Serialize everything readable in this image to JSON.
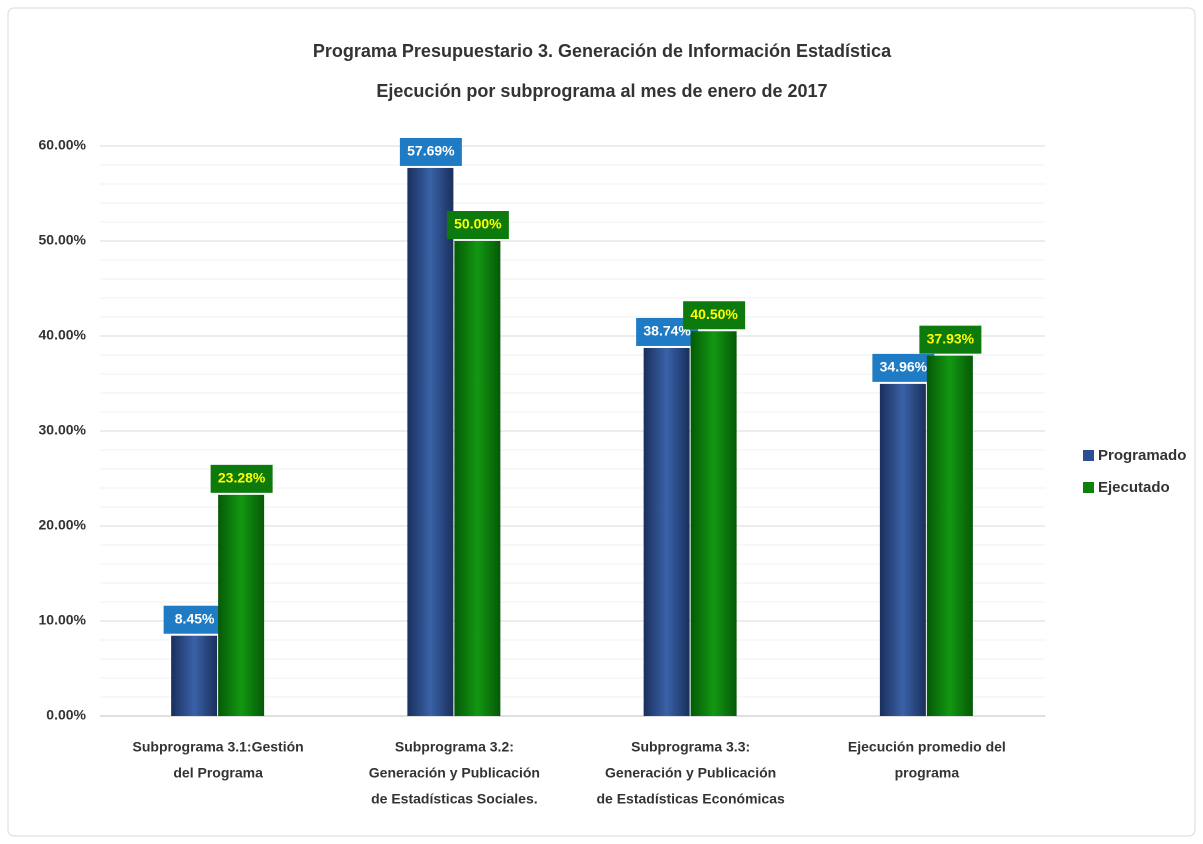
{
  "chart_data": {
    "type": "bar",
    "title": [
      "Programa Presupuestario 3.  Generación de Información Estadística",
      "Ejecución por subprograma al mes de enero de 2017"
    ],
    "categories": [
      [
        "Subprograma 3.1:Gestión",
        "del Programa"
      ],
      [
        "Subprograma 3.2:",
        "Generación y Publicación",
        "de Estadísticas Sociales."
      ],
      [
        "Subprograma 3.3:",
        "Generación y Publicación",
        "de Estadísticas Económicas"
      ],
      [
        "Ejecución promedio del",
        "programa"
      ]
    ],
    "series": [
      {
        "name": "Programado",
        "color": "#2c4f8f",
        "label_fill": "#1f7cc4",
        "label_color": "#ffffff",
        "values": [
          8.45,
          57.69,
          38.74,
          34.96
        ],
        "value_labels": [
          "8.45%",
          "57.69%",
          "38.74%",
          "34.96%"
        ]
      },
      {
        "name": "Ejecutado",
        "color": "#0c820c",
        "label_fill": "#0c7a0c",
        "label_color": "#ffff00",
        "values": [
          23.28,
          50.0,
          40.5,
          37.93
        ],
        "value_labels": [
          "23.28%",
          "50.00%",
          "40.50%",
          "37.93%"
        ]
      }
    ],
    "ylim": [
      0,
      60
    ],
    "yticks": [
      {
        "value": 0,
        "label": "0.00%"
      },
      {
        "value": 10,
        "label": "10.00%"
      },
      {
        "value": 20,
        "label": "20.00%"
      },
      {
        "value": 30,
        "label": "30.00%"
      },
      {
        "value": 40,
        "label": "40.00%"
      },
      {
        "value": 50,
        "label": "50.00%"
      },
      {
        "value": 60,
        "label": "60.00%"
      }
    ],
    "minor_yticks": [
      2,
      4,
      6,
      8,
      12,
      14,
      16,
      18,
      22,
      24,
      26,
      28,
      32,
      34,
      36,
      38,
      42,
      44,
      46,
      48,
      52,
      54,
      56,
      58
    ],
    "grid": true,
    "legend": "right"
  }
}
